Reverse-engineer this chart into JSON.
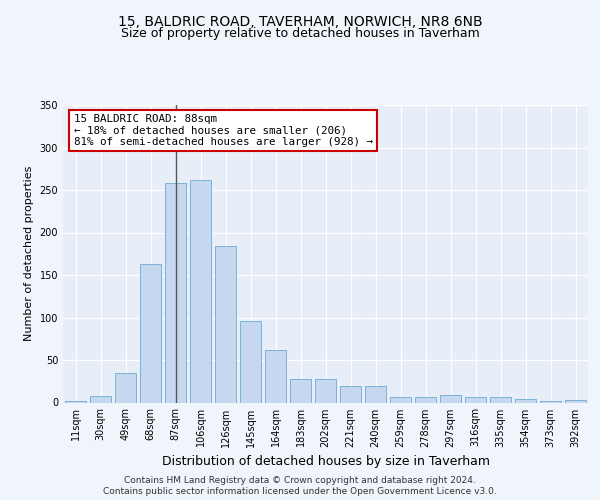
{
  "title1": "15, BALDRIC ROAD, TAVERHAM, NORWICH, NR8 6NB",
  "title2": "Size of property relative to detached houses in Taverham",
  "xlabel": "Distribution of detached houses by size in Taverham",
  "ylabel": "Number of detached properties",
  "categories": [
    "11sqm",
    "30sqm",
    "49sqm",
    "68sqm",
    "87sqm",
    "106sqm",
    "126sqm",
    "145sqm",
    "164sqm",
    "183sqm",
    "202sqm",
    "221sqm",
    "240sqm",
    "259sqm",
    "278sqm",
    "297sqm",
    "316sqm",
    "335sqm",
    "354sqm",
    "373sqm",
    "392sqm"
  ],
  "values": [
    2,
    8,
    35,
    163,
    258,
    262,
    184,
    96,
    62,
    28,
    28,
    19,
    19,
    6,
    6,
    9,
    6,
    6,
    4,
    2,
    3
  ],
  "highlight_index": 4,
  "bar_color": "#c5d8ef",
  "bar_edge_color": "#6aaad4",
  "highlight_line_color": "#555555",
  "annotation_text": "15 BALDRIC ROAD: 88sqm\n← 18% of detached houses are smaller (206)\n81% of semi-detached houses are larger (928) →",
  "annotation_box_facecolor": "#ffffff",
  "annotation_box_edgecolor": "#cc0000",
  "footer1": "Contains HM Land Registry data © Crown copyright and database right 2024.",
  "footer2": "Contains public sector information licensed under the Open Government Licence v3.0.",
  "ylim": [
    0,
    350
  ],
  "fig_bg_color": "#f0f4fb",
  "plot_bg_color": "#e8eef8",
  "title1_fontsize": 10,
  "title2_fontsize": 9,
  "ylabel_fontsize": 8,
  "xlabel_fontsize": 9,
  "tick_fontsize": 7,
  "footer_fontsize": 6.5
}
